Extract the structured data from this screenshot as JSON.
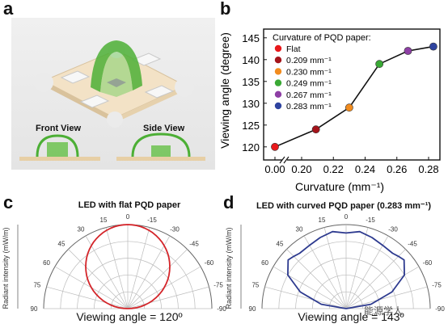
{
  "panels": {
    "a": "a",
    "b": "b",
    "c": "c",
    "d": "d"
  },
  "panel_a": {
    "front_view": "Front View",
    "side_view": "Side View",
    "colors": {
      "pqd_green": "#4caf35",
      "board": "#f3e2c6",
      "pad": "#f7f7f7"
    }
  },
  "chart_data": [
    {
      "type": "scatter",
      "panel": "b",
      "xlabel": "Curvature (mm⁻¹)",
      "ylabel": "Viewing angle (degree)",
      "xlim": [
        0,
        0.29
      ],
      "ylim": [
        117,
        147
      ],
      "x_ticks": [
        "0.00",
        "0.20",
        "0.22",
        "0.24",
        "0.26",
        "0.28"
      ],
      "x_tick_values": [
        0.0,
        0.2,
        0.22,
        0.24,
        0.26,
        0.28
      ],
      "y_ticks": [
        120,
        125,
        130,
        135,
        140,
        145
      ],
      "axis_break": true,
      "legend_title": "Curvature of PQD paper:",
      "legend_position": "top-left",
      "points": [
        {
          "x": 0.0,
          "y": 120,
          "label": "Flat",
          "color": "#e8191c"
        },
        {
          "x": 0.209,
          "y": 124,
          "label": "0.209 mm⁻¹",
          "color": "#a5141b"
        },
        {
          "x": 0.23,
          "y": 129,
          "label": "0.230 mm⁻¹",
          "color": "#f28c1e"
        },
        {
          "x": 0.249,
          "y": 139,
          "label": "0.249 mm⁻¹",
          "color": "#3aa935"
        },
        {
          "x": 0.267,
          "y": 142,
          "label": "0.267 mm⁻¹",
          "color": "#8e3fa5"
        },
        {
          "x": 0.283,
          "y": 143,
          "label": "0.283 mm⁻¹",
          "color": "#2f44a0"
        }
      ]
    },
    {
      "type": "line",
      "panel": "c",
      "polar": true,
      "title": "LED with flat PQD paper",
      "radial_label": "Radiant intensity (mW/m)",
      "angle_ticks": [
        15,
        30,
        45,
        60,
        75,
        90,
        0,
        -15,
        -30,
        -45,
        -60,
        -75,
        -90
      ],
      "series": [
        {
          "color": "#d4252a",
          "shape": "lambertian",
          "angles": [
            -90,
            -75,
            -60,
            -45,
            -30,
            -15,
            0,
            15,
            30,
            45,
            60,
            75,
            90
          ],
          "values": [
            0.0,
            0.26,
            0.5,
            0.71,
            0.87,
            0.97,
            1.0,
            0.97,
            0.87,
            0.71,
            0.5,
            0.26,
            0.0
          ]
        }
      ],
      "caption": "Viewing angle = 120º"
    },
    {
      "type": "line",
      "panel": "d",
      "polar": true,
      "title": "LED with curved PQD paper (0.283 mm⁻¹)",
      "radial_label": "Radiant intensity (mW/m)",
      "angle_ticks": [
        15,
        30,
        45,
        60,
        75,
        90,
        0,
        -15,
        -30,
        -45,
        -60,
        -75,
        -90
      ],
      "series": [
        {
          "color": "#2d3a8f",
          "angles": [
            -90,
            -80,
            -70,
            -60,
            -50,
            -45,
            -40,
            -30,
            -20,
            -10,
            0,
            10,
            20,
            30,
            40,
            45,
            50,
            60,
            70,
            80,
            90
          ],
          "values": [
            0.0,
            0.3,
            0.58,
            0.8,
            0.9,
            0.88,
            0.86,
            0.87,
            0.9,
            0.93,
            0.9,
            0.93,
            0.9,
            0.87,
            0.86,
            0.88,
            0.9,
            0.8,
            0.58,
            0.3,
            0.0
          ]
        }
      ],
      "caption": "Viewing angle = 143º"
    }
  ],
  "watermark": "能源学人"
}
